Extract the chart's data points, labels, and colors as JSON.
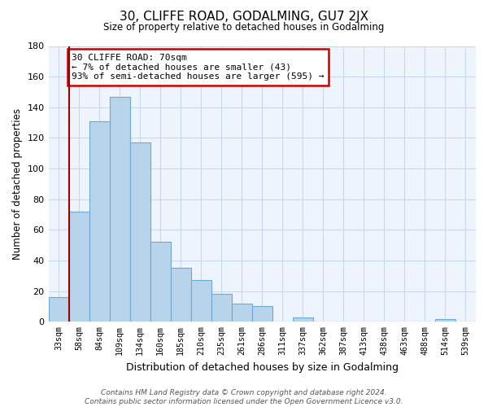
{
  "title": "30, CLIFFE ROAD, GODALMING, GU7 2JX",
  "subtitle": "Size of property relative to detached houses in Godalming",
  "xlabel": "Distribution of detached houses by size in Godalming",
  "ylabel": "Number of detached properties",
  "bin_labels": [
    "33sqm",
    "58sqm",
    "84sqm",
    "109sqm",
    "134sqm",
    "160sqm",
    "185sqm",
    "210sqm",
    "235sqm",
    "261sqm",
    "286sqm",
    "311sqm",
    "337sqm",
    "362sqm",
    "387sqm",
    "413sqm",
    "438sqm",
    "463sqm",
    "488sqm",
    "514sqm",
    "539sqm"
  ],
  "bar_heights": [
    16,
    72,
    131,
    147,
    117,
    52,
    35,
    27,
    18,
    12,
    10,
    0,
    3,
    0,
    0,
    0,
    0,
    0,
    0,
    2,
    0
  ],
  "bar_color": "#b8d4ea",
  "bar_edge_color": "#6aaad4",
  "vline_x_index": 1,
  "vline_color": "#990000",
  "annotation_text": "30 CLIFFE ROAD: 70sqm\n← 7% of detached houses are smaller (43)\n93% of semi-detached houses are larger (595) →",
  "annotation_box_color": "#ffffff",
  "annotation_box_edge": "#cc0000",
  "ylim": [
    0,
    180
  ],
  "yticks": [
    0,
    20,
    40,
    60,
    80,
    100,
    120,
    140,
    160,
    180
  ],
  "footer_line1": "Contains HM Land Registry data © Crown copyright and database right 2024.",
  "footer_line2": "Contains public sector information licensed under the Open Government Licence v3.0.",
  "bg_color": "#ffffff",
  "plot_bg_color": "#eef4fb",
  "grid_color": "#c8d8e8"
}
